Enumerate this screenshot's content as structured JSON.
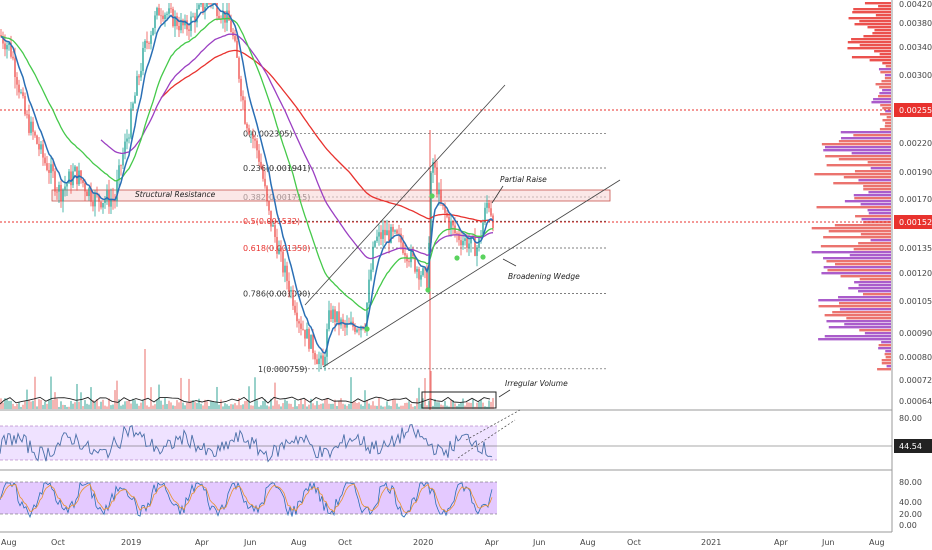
{
  "chart_data": {
    "type": "line",
    "price_axis_ticks": [
      "0.004200",
      "0.003800",
      "0.003400",
      "0.003000",
      "0.002558",
      "0.002200",
      "0.001900",
      "0.001700",
      "0.001526",
      "0.001350",
      "0.001200",
      "0.001050",
      "0.000900",
      "0.000800",
      "0.000720",
      "0.000640"
    ],
    "price_axis_highlight": {
      "resistance_label": "0.002558",
      "current_label": "0.001526"
    },
    "time_axis_ticks": [
      "Aug",
      "Oct",
      "2019",
      "Apr",
      "Jun",
      "Aug",
      "Oct",
      "2020",
      "Apr",
      "Jun",
      "Aug",
      "Oct",
      "2021",
      "Apr",
      "Jun",
      "Aug"
    ],
    "fib_levels": [
      {
        "label": "0(0.002305)",
        "value": 0.002305
      },
      {
        "label": "0.236(0.001941)",
        "value": 0.001941
      },
      {
        "label": "0.382(0.001715)",
        "value": 0.001715
      },
      {
        "label": "0.5(0.001532)",
        "value": 0.001532
      },
      {
        "label": "0.618(0.001350)",
        "value": 0.00135
      },
      {
        "label": "0.786(0.001090)",
        "value": 0.00109
      },
      {
        "label": "1(0.000759)",
        "value": 0.000759
      }
    ],
    "annotations": {
      "structural_resistance": "Structural Resistance",
      "partial_raise": "Partial Raise",
      "broadening_wedge": "Broadening Wedge",
      "irregular_volume": "Irregular Volume"
    },
    "rsi": {
      "ticks": [
        "80.00",
        "44.54"
      ],
      "current": 44.54
    },
    "stoch_rsi": {
      "ticks": [
        "80.00",
        "40.00",
        "20.00",
        "0.00"
      ]
    },
    "colors": {
      "ema_fast": "#2a6fb5",
      "ema_mid": "#45c94a",
      "ema_slow": "#9b3fc2",
      "ma_long": "#e8322e",
      "up": "#26a69a",
      "down": "#ef5350",
      "oscillator_fill": "#e4c9ff",
      "price_label_bg": "#e8322e"
    }
  }
}
